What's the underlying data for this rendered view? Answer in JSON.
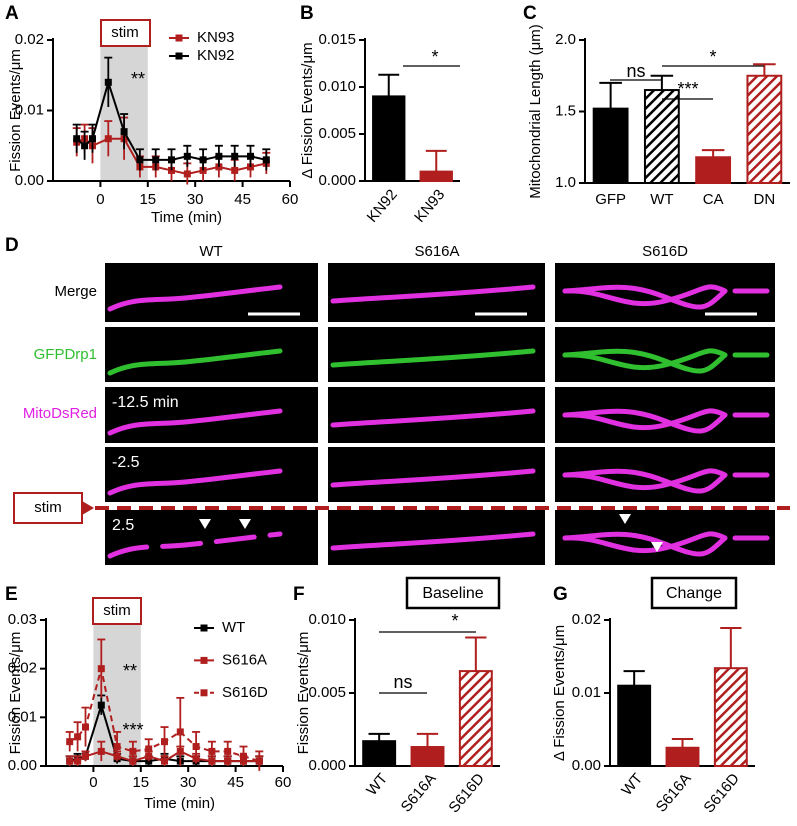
{
  "chart_data": [
    {
      "type": "line",
      "ylabel": "Fission Events/μm",
      "xlabel": "Time (min)",
      "x": [
        -7.5,
        -5,
        -2.5,
        2.5,
        7.5,
        12.5,
        17.5,
        22.5,
        27.5,
        32.5,
        37.5,
        42.5,
        47.5,
        52.5
      ],
      "series": [
        {
          "name": "KN93",
          "color": "#b01e1e",
          "dashed": false,
          "values": [
            0.0055,
            0.006,
            0.005,
            0.006,
            0.006,
            0.002,
            0.002,
            0.0015,
            0.001,
            0.0015,
            0.002,
            0.0015,
            0.002,
            0.0025
          ],
          "errors": [
            0.002,
            0.002,
            0.0025,
            0.0025,
            0.003,
            0.0015,
            0.0015,
            0.0015,
            0.0015,
            0.0015,
            0.0015,
            0.0015,
            0.0015,
            0.0015
          ]
        },
        {
          "name": "KN92",
          "color": "#000000",
          "dashed": false,
          "values": [
            0.006,
            0.005,
            0.006,
            0.014,
            0.007,
            0.003,
            0.003,
            0.003,
            0.0035,
            0.003,
            0.0035,
            0.0035,
            0.0035,
            0.003
          ],
          "errors": [
            0.002,
            0.002,
            0.002,
            0.0035,
            0.0025,
            0.0015,
            0.0015,
            0.0015,
            0.0015,
            0.0015,
            0.0015,
            0.0015,
            0.0015,
            0.0015
          ]
        }
      ],
      "xlim": [
        -15,
        60
      ],
      "xticks": [
        0,
        15,
        30,
        45,
        60
      ],
      "ylim": [
        0,
        0.02
      ],
      "yticks": [
        {
          "value": 0,
          "label": "0.00"
        },
        0.01,
        0.02
      ],
      "stim_window": [
        0,
        15
      ],
      "legend": "top-right",
      "annotations": [
        "stim",
        "**"
      ]
    },
    {
      "type": "bar",
      "ylabel": "Δ Fission Events/μm",
      "categories": [
        "KN92",
        "KN93"
      ],
      "values": [
        0.009,
        0.001
      ],
      "errors": [
        0.0023,
        0.0022
      ],
      "colors": [
        "#000000",
        "#b01e1e"
      ],
      "hatch": [
        false,
        false
      ],
      "ylim": [
        0,
        0.015
      ],
      "yticks": [
        {
          "value": 0,
          "label": "0.000"
        },
        0.005,
        {
          "value": 0.01,
          "label": "0.010"
        },
        0.015
      ],
      "rotate_labels": true,
      "annotations": [
        "*"
      ]
    },
    {
      "type": "bar",
      "ylabel": "Mitochondrial Length (μm)",
      "categories": [
        "GFP",
        "WT",
        "CA",
        "DN"
      ],
      "values": [
        1.52,
        1.65,
        1.18,
        1.75
      ],
      "errors": [
        0.18,
        0.1,
        0.05,
        0.08
      ],
      "colors": [
        "#000000",
        "#000000",
        "#b01e1e",
        "#b01e1e"
      ],
      "hatch": [
        false,
        true,
        false,
        true
      ],
      "ylim": [
        1,
        2
      ],
      "yticks": [
        {
          "value": 1,
          "label": "1.0"
        },
        1.5,
        {
          "value": 2,
          "label": "2.0"
        }
      ],
      "rotate_labels": false,
      "annotations": [
        "ns",
        "***",
        "*"
      ]
    },
    {
      "type": "line",
      "ylabel": "Fission Events/μm",
      "xlabel": "Time (min)",
      "x": [
        -7.5,
        -5,
        -2.5,
        2.5,
        7.5,
        12.5,
        17.5,
        22.5,
        27.5,
        32.5,
        37.5,
        42.5,
        47.5,
        52.5
      ],
      "series": [
        {
          "name": "WT",
          "color": "#000000",
          "dashed": false,
          "values": [
            0.001,
            0.0015,
            0.002,
            0.0125,
            0.0015,
            0.001,
            0.001,
            0.0015,
            0.001,
            0.001,
            0.001,
            0.001,
            0.001,
            0.001
          ],
          "errors": [
            0.001,
            0.001,
            0.001,
            0.002,
            0.001,
            0.001,
            0.001,
            0.001,
            0.001,
            0.001,
            0.001,
            0.001,
            0.001,
            0.001
          ]
        },
        {
          "name": "S616A",
          "color": "#b01e1e",
          "dashed": false,
          "values": [
            0.001,
            0.001,
            0.002,
            0.003,
            0.002,
            0.001,
            0.002,
            0.001,
            0.003,
            0.0015,
            0.001,
            0.001,
            0.001,
            0.001
          ],
          "errors": [
            0.001,
            0.001,
            0.001,
            0.002,
            0.001,
            0.001,
            0.001,
            0.001,
            0.001,
            0.001,
            0.001,
            0.001,
            0.001,
            0.001
          ]
        },
        {
          "name": "S616D",
          "color": "#b01e1e",
          "dashed": true,
          "values": [
            0.005,
            0.006,
            0.008,
            0.02,
            0.004,
            0.003,
            0.0035,
            0.005,
            0.007,
            0.004,
            0.003,
            0.003,
            0.002,
            0.001
          ],
          "errors": [
            0.002,
            0.003,
            0.004,
            0.006,
            0.003,
            0.002,
            0.002,
            0.003,
            0.007,
            0.003,
            0.002,
            0.002,
            0.002,
            0.002
          ]
        }
      ],
      "xlim": [
        -15,
        60
      ],
      "xticks": [
        0,
        15,
        30,
        45,
        60
      ],
      "ylim": [
        0,
        0.03
      ],
      "yticks": [
        {
          "value": 0,
          "label": "0.00"
        },
        0.01,
        0.02,
        0.03
      ],
      "stim_window": [
        0,
        15
      ],
      "legend": "top-right",
      "annotations": [
        "stim",
        "**",
        "***"
      ]
    },
    {
      "type": "bar",
      "title": "Baseline",
      "ylabel": "Fission Events/μm",
      "categories": [
        "WT",
        "S616A",
        "S616D"
      ],
      "values": [
        0.0017,
        0.0013,
        0.0065
      ],
      "errors": [
        0.0005,
        0.0009,
        0.0023
      ],
      "colors": [
        "#000000",
        "#b01e1e",
        "#b01e1e"
      ],
      "hatch": [
        false,
        false,
        true
      ],
      "ylim": [
        0,
        0.01
      ],
      "yticks": [
        {
          "value": 0,
          "label": "0.000"
        },
        0.005,
        {
          "value": 0.01,
          "label": "0.010"
        }
      ],
      "rotate_labels": true,
      "annotations": [
        "ns",
        "*"
      ]
    },
    {
      "type": "bar",
      "title": "Change",
      "ylabel": "Δ Fission Events/μm",
      "categories": [
        "WT",
        "S616A",
        "S616D"
      ],
      "values": [
        0.011,
        0.0025,
        0.0134
      ],
      "errors": [
        0.002,
        0.0012,
        0.0055
      ],
      "colors": [
        "#000000",
        "#b01e1e",
        "#b01e1e"
      ],
      "hatch": [
        false,
        false,
        true
      ],
      "ylim": [
        0,
        0.02
      ],
      "yticks": [
        {
          "value": 0,
          "label": "0.00"
        },
        0.01,
        0.02
      ],
      "rotate_labels": true,
      "annotations": []
    }
  ],
  "figure": {
    "panel_labels": [
      "A",
      "B",
      "C",
      "D",
      "E",
      "F",
      "G"
    ],
    "image_panel": {
      "columns": [
        "WT",
        "S616A",
        "S616D"
      ],
      "rows": [
        "Merge",
        "GFPDrp1",
        "MitoDsRed"
      ],
      "times": [
        "-12.5 min",
        "-2.5",
        "2.5"
      ],
      "stim": "stim"
    }
  }
}
